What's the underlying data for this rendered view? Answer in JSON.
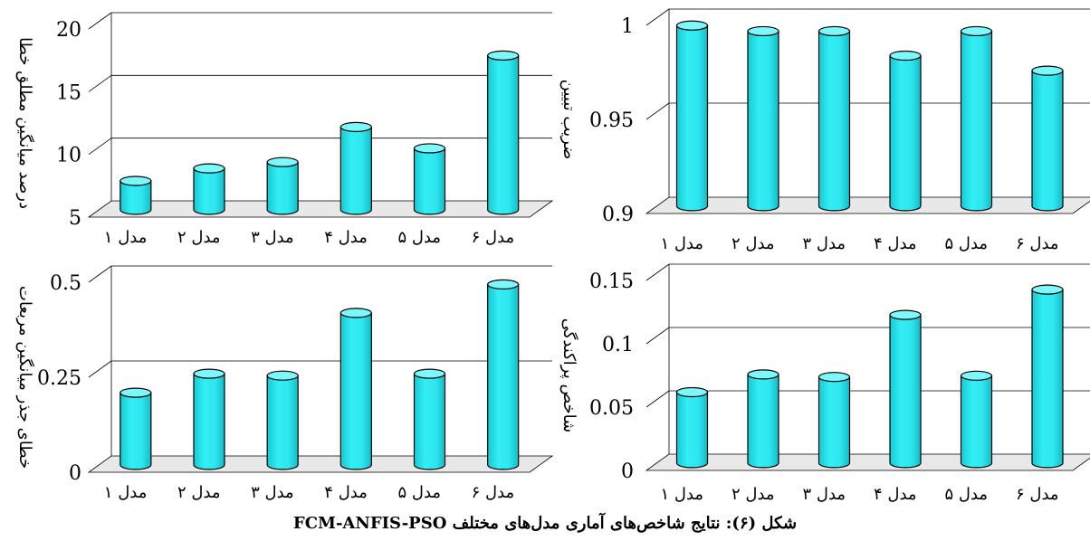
{
  "figure": {
    "caption": "شکل (۶): نتایج شاخص‌های آماری مدل‌های مختلف FCM-ANFIS-PSO"
  },
  "colors": {
    "bar": "#33EEF4",
    "bar_top": "#7CF7FA",
    "bar_edge": "#000000",
    "floor": "#e8e8e8",
    "grid": "#000000"
  },
  "chart_data": [
    {
      "type": "bar",
      "position": "top-left",
      "ylabel": "درصد میانگین مطلق خطا",
      "categories": [
        "مدل ۱",
        "مدل ۲",
        "مدل ۳",
        "مدل ۴",
        "مدل ۵",
        "مدل ۶"
      ],
      "values": [
        7.3,
        8.3,
        8.8,
        11.6,
        9.9,
        17.3
      ],
      "ylim": [
        5,
        20
      ],
      "yticks": [
        "5",
        "10",
        "15",
        "20"
      ],
      "ytick_values": [
        5,
        10,
        15,
        20
      ],
      "grid": true
    },
    {
      "type": "bar",
      "position": "top-right",
      "ylabel": "ضریب تبیین",
      "categories": [
        "مدل ۱",
        "مدل ۲",
        "مدل ۳",
        "مدل ۴",
        "مدل ۵",
        "مدل ۶"
      ],
      "values": [
        0.996,
        0.993,
        0.993,
        0.98,
        0.993,
        0.972
      ],
      "ylim": [
        0.9,
        1.0
      ],
      "yticks": [
        "0.9",
        "0.95",
        "1"
      ],
      "ytick_values": [
        0.9,
        0.95,
        1.0
      ],
      "grid": true
    },
    {
      "type": "bar",
      "position": "bottom-left",
      "ylabel": "خطای جذر میانگین مربعات",
      "categories": [
        "مدل ۱",
        "مدل ۲",
        "مدل ۳",
        "مدل ۴",
        "مدل ۵",
        "مدل ۶"
      ],
      "values": [
        0.19,
        0.24,
        0.235,
        0.4,
        0.24,
        0.475
      ],
      "ylim": [
        0,
        0.5
      ],
      "yticks": [
        "0",
        "0.25",
        "0.5"
      ],
      "ytick_values": [
        0,
        0.25,
        0.5
      ],
      "grid": true
    },
    {
      "type": "bar",
      "position": "bottom-right",
      "ylabel": "شاخص پراکندگی",
      "categories": [
        "مدل ۱",
        "مدل ۲",
        "مدل ۳",
        "مدل ۴",
        "مدل ۵",
        "مدل ۶"
      ],
      "values": [
        0.056,
        0.07,
        0.068,
        0.117,
        0.069,
        0.137
      ],
      "ylim": [
        0,
        0.15
      ],
      "yticks": [
        "0",
        "0.05",
        "0.1",
        "0.15"
      ],
      "ytick_values": [
        0,
        0.05,
        0.1,
        0.15
      ],
      "grid": true
    }
  ]
}
